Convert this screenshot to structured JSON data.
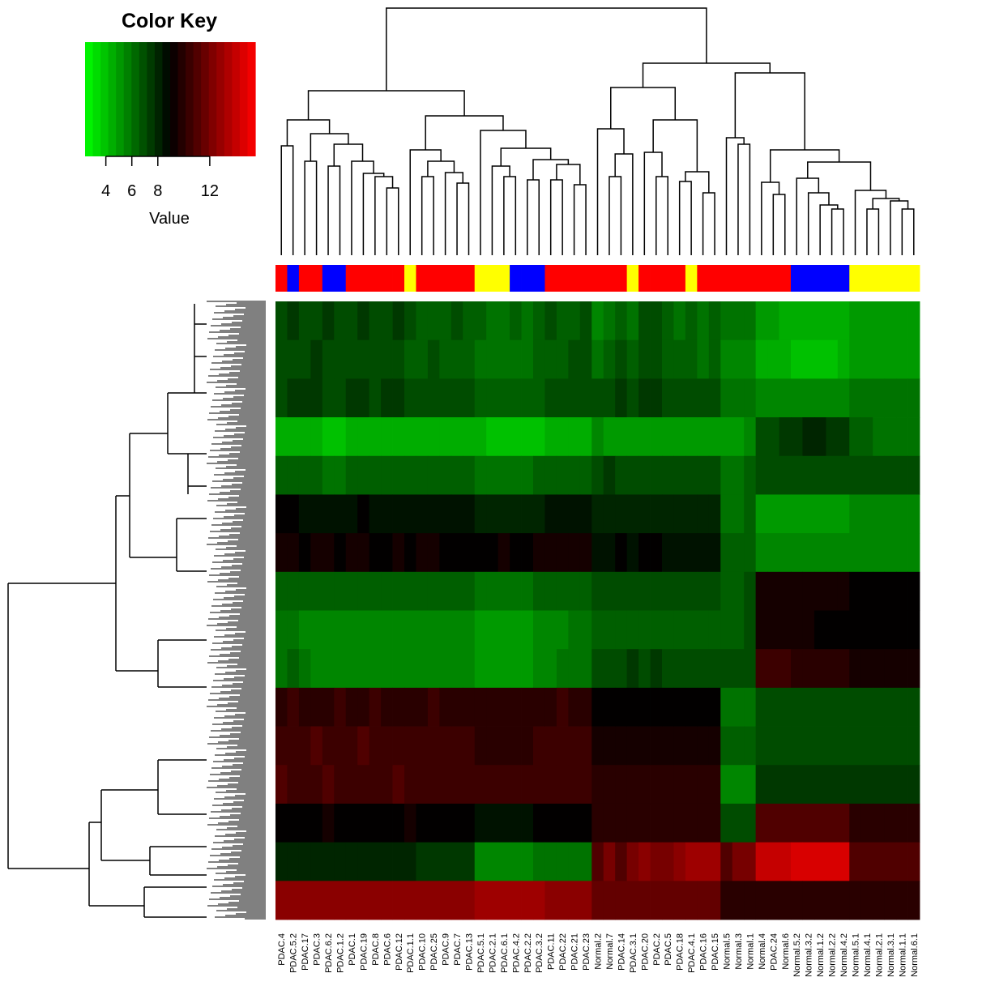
{
  "chart_data": {
    "type": "heatmap",
    "columns": [
      "PDAC.4",
      "PDAC.5.2",
      "PDAC.17",
      "PDAC.3",
      "PDAC.6.2",
      "PDAC.1.2",
      "PDAC.1",
      "PDAC.19",
      "PDAC.8",
      "PDAC.6",
      "PDAC.12",
      "PDAC.1.1",
      "PDAC.10",
      "PDAC.25",
      "PDAC.9",
      "PDAC.7",
      "PDAC.13",
      "PDAC.5.1",
      "PDAC.2.1",
      "PDAC.6.1",
      "PDAC.4.2",
      "PDAC.2.2",
      "PDAC.3.2",
      "PDAC.11",
      "PDAC.22",
      "PDAC.21",
      "PDAC.23",
      "Normal.2",
      "Normal.7",
      "PDAC.14",
      "PDAC.3.1",
      "PDAC.20",
      "PDAC.2",
      "PDAC.5",
      "PDAC.18",
      "PDAC.4.1",
      "PDAC.16",
      "PDAC.15",
      "Normal.5",
      "Normal.3",
      "Normal.1",
      "Normal.4",
      "PDAC.24",
      "Normal.6",
      "Normal.5.2",
      "Normal.3.2",
      "Normal.1.2",
      "Normal.2.2",
      "Normal.4.2",
      "Normal.5.1",
      "Normal.4.1",
      "Normal.2.1",
      "Normal.3.1",
      "Normal.1.1",
      "Normal.6.1"
    ],
    "column_colors": [
      "#ff0000",
      "#0000ff",
      "#ff0000",
      "#ff0000",
      "#0000ff",
      "#0000ff",
      "#ff0000",
      "#ff0000",
      "#ff0000",
      "#ff0000",
      "#ff0000",
      "#ffff00",
      "#ff0000",
      "#ff0000",
      "#ff0000",
      "#ff0000",
      "#ff0000",
      "#ffff00",
      "#ffff00",
      "#ffff00",
      "#0000ff",
      "#0000ff",
      "#0000ff",
      "#ff0000",
      "#ff0000",
      "#ff0000",
      "#ff0000",
      "#ff0000",
      "#ff0000",
      "#ff0000",
      "#ffff00",
      "#ff0000",
      "#ff0000",
      "#ff0000",
      "#ff0000",
      "#ffff00",
      "#ff0000",
      "#ff0000",
      "#ff0000",
      "#ff0000",
      "#ff0000",
      "#ff0000",
      "#ff0000",
      "#ff0000",
      "#0000ff",
      "#0000ff",
      "#0000ff",
      "#0000ff",
      "#0000ff",
      "#ffff00",
      "#ffff00",
      "#ffff00",
      "#ffff00",
      "#ffff00",
      "#ffff00"
    ],
    "values": [
      [
        7,
        7.5,
        7,
        7,
        7.5,
        7,
        7,
        7.5,
        7,
        7,
        7.5,
        7,
        6.5,
        6.5,
        6.5,
        7,
        6.5,
        6.5,
        6,
        6,
        6.5,
        6,
        6.5,
        7,
        6.5,
        6.5,
        7,
        5.5,
        6,
        6.5,
        6,
        7,
        7,
        6.5,
        6,
        6.5,
        6,
        6.5,
        6,
        6,
        6,
        5,
        5,
        4.5,
        4.5,
        4.5,
        4.5,
        4.5,
        4.5,
        5,
        5,
        5,
        5,
        5,
        5
      ],
      [
        7,
        7,
        7,
        7.5,
        7,
        7,
        7,
        7,
        7,
        7,
        7,
        6.5,
        6.5,
        7,
        6.5,
        6.5,
        6.5,
        6,
        6,
        6,
        6,
        6,
        6.5,
        6.5,
        6.5,
        7,
        7,
        6,
        6.5,
        7,
        6.5,
        7,
        7,
        6.5,
        6.5,
        6.5,
        6,
        6.5,
        5.5,
        5.5,
        5.5,
        4.5,
        4.5,
        4.5,
        4,
        4,
        4,
        4,
        4.5,
        5,
        5,
        5,
        5,
        5,
        5
      ],
      [
        7,
        7.5,
        7.5,
        7.5,
        7,
        7,
        7.5,
        7.5,
        7,
        7.5,
        7.5,
        7,
        7,
        7,
        7,
        7,
        7,
        6.5,
        6.5,
        6.5,
        6.5,
        6.5,
        6.5,
        7,
        7,
        7,
        7,
        7,
        7,
        7.5,
        7,
        7.5,
        7.5,
        7,
        7,
        7,
        7,
        7,
        6,
        6,
        6,
        5.5,
        5.5,
        5.5,
        5.5,
        5.5,
        5.5,
        5.5,
        5.5,
        6,
        6,
        6,
        6,
        6,
        6
      ],
      [
        4.5,
        4.5,
        4.5,
        4.5,
        4,
        4,
        4.5,
        4.5,
        4.5,
        4.5,
        4.5,
        4.5,
        4.5,
        4.5,
        4.5,
        4.5,
        4.5,
        4.5,
        4,
        4,
        4,
        4,
        4,
        4.5,
        4.5,
        4.5,
        4.5,
        5.5,
        5,
        5,
        5,
        5,
        5,
        5,
        5,
        5,
        5,
        5,
        5,
        5,
        5.5,
        7,
        7,
        7.5,
        7.5,
        8,
        8,
        7.5,
        7.5,
        6.5,
        6.5,
        6,
        6,
        6,
        6
      ],
      [
        6.5,
        6.5,
        6.5,
        6.5,
        6,
        6,
        6.5,
        6.5,
        6.5,
        6.5,
        6.5,
        6.5,
        6.5,
        6.5,
        6.5,
        6.5,
        6.5,
        6,
        6,
        6,
        6,
        6,
        6.5,
        6.5,
        6.5,
        6.5,
        6.5,
        7,
        7.5,
        7,
        7,
        7,
        7,
        7,
        7,
        7,
        7,
        7,
        6,
        6,
        6.5,
        7,
        7,
        7,
        7,
        7,
        7,
        7,
        7,
        7,
        7,
        7,
        7,
        7,
        7
      ],
      [
        9,
        9,
        8.5,
        8.5,
        8.5,
        8.5,
        8.5,
        9,
        8.5,
        8.5,
        8.5,
        8.5,
        8.5,
        8.5,
        8.5,
        8.5,
        8.5,
        8,
        8,
        8,
        8,
        8,
        8,
        8.5,
        8.5,
        8.5,
        8.5,
        8,
        8,
        8,
        8,
        8,
        8,
        8,
        8,
        8,
        8,
        8,
        6,
        6,
        6.5,
        5,
        5,
        5,
        5,
        5,
        5,
        5,
        5,
        5.5,
        5.5,
        5.5,
        5.5,
        5.5,
        5.5
      ],
      [
        9.5,
        9.5,
        9,
        9.5,
        9.5,
        9,
        9.5,
        9.5,
        9,
        9,
        9.5,
        9,
        9.5,
        9.5,
        9,
        9,
        9,
        9,
        9,
        9.5,
        9,
        9,
        9.5,
        9.5,
        9.5,
        9.5,
        9.5,
        8.5,
        8.5,
        9,
        8.5,
        9,
        9,
        8.5,
        8.5,
        8.5,
        8.5,
        8.5,
        6.5,
        6.5,
        6.5,
        5.5,
        5.5,
        5.5,
        5.5,
        5.5,
        5.5,
        5.5,
        5.5,
        5.5,
        5.5,
        5.5,
        5.5,
        5.5,
        5.5
      ],
      [
        6.5,
        6.5,
        6.5,
        6.5,
        6.5,
        6.5,
        6.5,
        6.5,
        6.5,
        6.5,
        6.5,
        6.5,
        6.5,
        6.5,
        6.5,
        6.5,
        6.5,
        6,
        6,
        6,
        6,
        6,
        6.5,
        6.5,
        6.5,
        6.5,
        6.5,
        7,
        7,
        7,
        7,
        7,
        7,
        7,
        7,
        7,
        7,
        7,
        6.5,
        6.5,
        7,
        9.5,
        9.5,
        9.5,
        9.5,
        9.5,
        9.5,
        9.5,
        9.5,
        9,
        9,
        9,
        9,
        9,
        9
      ],
      [
        6,
        6,
        5.5,
        5.5,
        5.5,
        5.5,
        5.5,
        5.5,
        5.5,
        5.5,
        5.5,
        5.5,
        5.5,
        5.5,
        5.5,
        5.5,
        5.5,
        5,
        5,
        5,
        5,
        5,
        5.5,
        5.5,
        5.5,
        6,
        6,
        6.5,
        6.5,
        6.5,
        6.5,
        6.5,
        6.5,
        6.5,
        6.5,
        6.5,
        6.5,
        6.5,
        6.5,
        6.5,
        7,
        9.5,
        9.5,
        9.5,
        9.5,
        9.5,
        9,
        9,
        9,
        9,
        9,
        9,
        9,
        9,
        9
      ],
      [
        6,
        6.5,
        6,
        5.5,
        5.5,
        5.5,
        5.5,
        5.5,
        5.5,
        5.5,
        5.5,
        5.5,
        5.5,
        5.5,
        5.5,
        5.5,
        5.5,
        5,
        5,
        5,
        5,
        5,
        5.5,
        5.5,
        6,
        6,
        6,
        7,
        7,
        7,
        7.5,
        7,
        7.5,
        7,
        7,
        7,
        7,
        7,
        7,
        7,
        7,
        10.5,
        10.5,
        10.5,
        10,
        10,
        10,
        10,
        10,
        9.5,
        9.5,
        9.5,
        9.5,
        9.5,
        9.5
      ],
      [
        10,
        10.5,
        10,
        10,
        10,
        10.5,
        10,
        10,
        10.5,
        10,
        10,
        10,
        10,
        10.5,
        10,
        10,
        10,
        10,
        10,
        10,
        10,
        10,
        10,
        10,
        10.5,
        10,
        10,
        9,
        9,
        9,
        9,
        9,
        9,
        9,
        9,
        9,
        9,
        9,
        6,
        6,
        6,
        7,
        7,
        7,
        7,
        7,
        7,
        7,
        7,
        7,
        7,
        7,
        7,
        7,
        7
      ],
      [
        10.5,
        10.5,
        10.5,
        11,
        10.5,
        10.5,
        10.5,
        11,
        10.5,
        10.5,
        10.5,
        10.5,
        10.5,
        10.5,
        10.5,
        10.5,
        10.5,
        10,
        10,
        10,
        10,
        10,
        10.5,
        10.5,
        10.5,
        10.5,
        10.5,
        9.5,
        9.5,
        9.5,
        9.5,
        9.5,
        9.5,
        9.5,
        9.5,
        9.5,
        9.5,
        9.5,
        6.5,
        6.5,
        6.5,
        7,
        7,
        7,
        7,
        7,
        7,
        7,
        7,
        7,
        7,
        7,
        7,
        7,
        7
      ],
      [
        11,
        10.5,
        10.5,
        10.5,
        11,
        10.5,
        10.5,
        10.5,
        10.5,
        10.5,
        11,
        10.5,
        10.5,
        10.5,
        10.5,
        10.5,
        10.5,
        10.5,
        10.5,
        10.5,
        10.5,
        10.5,
        10.5,
        10.5,
        10.5,
        10.5,
        10.5,
        10,
        10,
        10,
        10,
        10,
        10,
        10,
        10,
        10,
        10,
        10,
        5.5,
        5.5,
        5.5,
        7.5,
        7.5,
        7.5,
        7.5,
        7.5,
        7.5,
        7.5,
        7.5,
        7.5,
        7.5,
        7.5,
        7.5,
        7.5,
        7.5
      ],
      [
        9,
        9,
        9,
        9,
        9.5,
        9,
        9,
        9,
        9,
        9,
        9,
        9.5,
        9,
        9,
        9,
        9,
        9,
        8.5,
        8.5,
        8.5,
        8.5,
        8.5,
        9,
        9,
        9,
        9,
        9,
        10,
        10,
        10,
        10,
        10,
        10,
        10,
        10,
        10,
        10,
        10,
        7,
        7,
        7,
        11,
        11,
        11,
        11,
        11,
        11,
        11,
        11,
        10,
        10,
        10,
        10,
        10,
        10
      ],
      [
        8,
        8,
        8,
        8,
        8,
        8,
        8,
        8,
        8,
        8,
        8,
        8,
        7.5,
        7.5,
        7.5,
        7.5,
        7.5,
        5.5,
        5.5,
        5.5,
        5.5,
        5.5,
        6,
        6,
        6,
        6,
        6,
        11,
        12,
        11,
        12,
        12.5,
        12,
        12,
        12.5,
        13,
        13,
        13,
        11,
        12,
        12,
        14,
        14,
        14,
        14.5,
        14.5,
        14.5,
        14.5,
        14.5,
        11,
        11,
        11,
        11,
        11,
        11
      ],
      [
        12.5,
        12.5,
        12.5,
        12.5,
        12.5,
        12.5,
        12.5,
        12.5,
        12.5,
        12.5,
        12.5,
        12.5,
        12.5,
        12.5,
        12.5,
        12.5,
        12.5,
        13,
        13,
        13,
        13,
        13,
        13,
        12.5,
        12.5,
        12.5,
        12.5,
        11.5,
        11.5,
        11.5,
        11.5,
        11.5,
        11.5,
        11.5,
        11.5,
        11.5,
        11.5,
        11.5,
        10,
        10,
        10,
        10,
        10,
        10,
        10,
        10,
        10,
        10,
        10,
        10,
        10,
        10,
        10,
        10,
        10
      ]
    ],
    "colorscale": [
      "#00ff00",
      "#000000",
      "#ff0000"
    ],
    "color_key": {
      "title": "Color Key",
      "xlabel": "Value",
      "xlim": [
        2.4,
        15.5
      ],
      "xticks": [
        4,
        6,
        8,
        12
      ]
    }
  }
}
